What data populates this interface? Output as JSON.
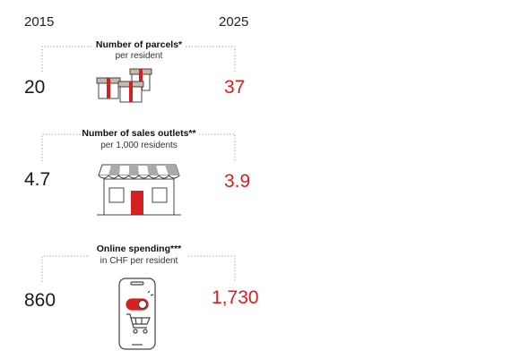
{
  "years": {
    "left": "2015",
    "right": "2025"
  },
  "colors": {
    "accent": "#d42020",
    "text": "#1a1a1a",
    "dotted": "#999999"
  },
  "chart_data": [
    {
      "type": "table",
      "title": "Number of parcels*",
      "subtitle": "per resident",
      "categories": [
        "2015",
        "2025"
      ],
      "values": [
        20,
        37
      ],
      "labels": [
        "20",
        "37"
      ],
      "icon": "parcels-icon"
    },
    {
      "type": "table",
      "title": "Number of sales outlets**",
      "subtitle": "per 1,000 residents",
      "categories": [
        "2015",
        "2025"
      ],
      "values": [
        4.7,
        3.9
      ],
      "labels": [
        "4.7",
        "3.9"
      ],
      "icon": "storefront-icon"
    },
    {
      "type": "table",
      "title": "Online spending***",
      "subtitle": "in CHF per resident",
      "categories": [
        "2015",
        "2025"
      ],
      "values": [
        860,
        1730
      ],
      "labels": [
        "860",
        "1,730"
      ],
      "icon": "smartphone-shopping-icon"
    }
  ]
}
